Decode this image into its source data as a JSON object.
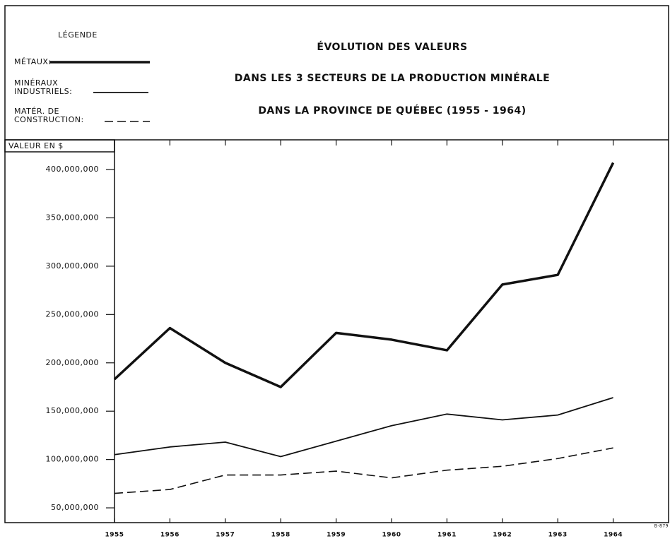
{
  "chart_data": {
    "type": "line",
    "title": [
      "ÉVOLUTION DES VALEURS",
      "DANS LES 3 SECTEURS DE LA PRODUCTION MINÉRALE",
      "DANS LA PROVINCE DE QUÉBEC (1955 - 1964)"
    ],
    "legend_title": "LÉGENDE",
    "y_label": "VALEUR EN $",
    "annotation": "B-879",
    "x": [
      1955,
      1956,
      1957,
      1958,
      1959,
      1960,
      1961,
      1962,
      1963,
      1964
    ],
    "xlim": [
      1955,
      1965
    ],
    "xticks": [
      1955,
      1956,
      1957,
      1958,
      1959,
      1960,
      1961,
      1962,
      1963,
      1964
    ],
    "ylim": [
      34700000,
      430700000
    ],
    "yticks": [
      {
        "value": 50000000,
        "label": "50,000,000"
      },
      {
        "value": 100000000,
        "label": "100,000,000"
      },
      {
        "value": 150000000,
        "label": "150,000,000"
      },
      {
        "value": 200000000,
        "label": "200,000,000"
      },
      {
        "value": 250000000,
        "label": "250,000,000"
      },
      {
        "value": 300000000,
        "label": "300,000,000"
      },
      {
        "value": 350000000,
        "label": "350,000,000"
      },
      {
        "value": 400000000,
        "label": "400,000,000"
      }
    ],
    "series": [
      {
        "name": "MÉTAUX:",
        "color": "#111111",
        "style": "bold",
        "values": [
          183000000,
          236000000,
          200000000,
          175000000,
          231000000,
          224000000,
          213000000,
          281000000,
          291000000,
          407000000
        ]
      },
      {
        "name": "MINÉRAUX\nINDUSTRIELS:",
        "color": "#111111",
        "style": "solid",
        "values": [
          105000000,
          113000000,
          118000000,
          103000000,
          119000000,
          135000000,
          147000000,
          141000000,
          146000000,
          164000000
        ]
      },
      {
        "name": "MATÉR. DE\nCONSTRUCTION:",
        "color": "#111111",
        "style": "dashed",
        "values": [
          65000000,
          69000000,
          84000000,
          84000000,
          88000000,
          81000000,
          89000000,
          93000000,
          101000000,
          112000000
        ]
      }
    ]
  }
}
